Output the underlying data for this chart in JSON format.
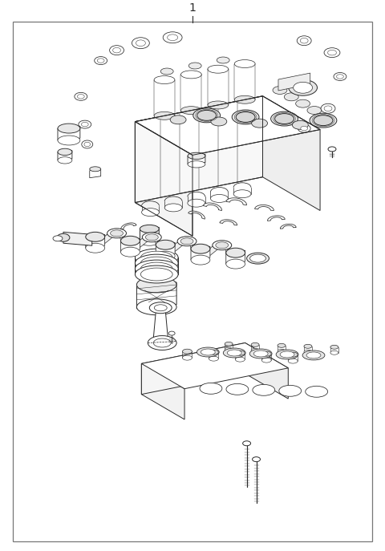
{
  "bg_color": "#ffffff",
  "line_color": "#2a2a2a",
  "border_color": "#888888",
  "figsize": [
    4.8,
    6.87
  ],
  "dpi": 100,
  "label": "1"
}
